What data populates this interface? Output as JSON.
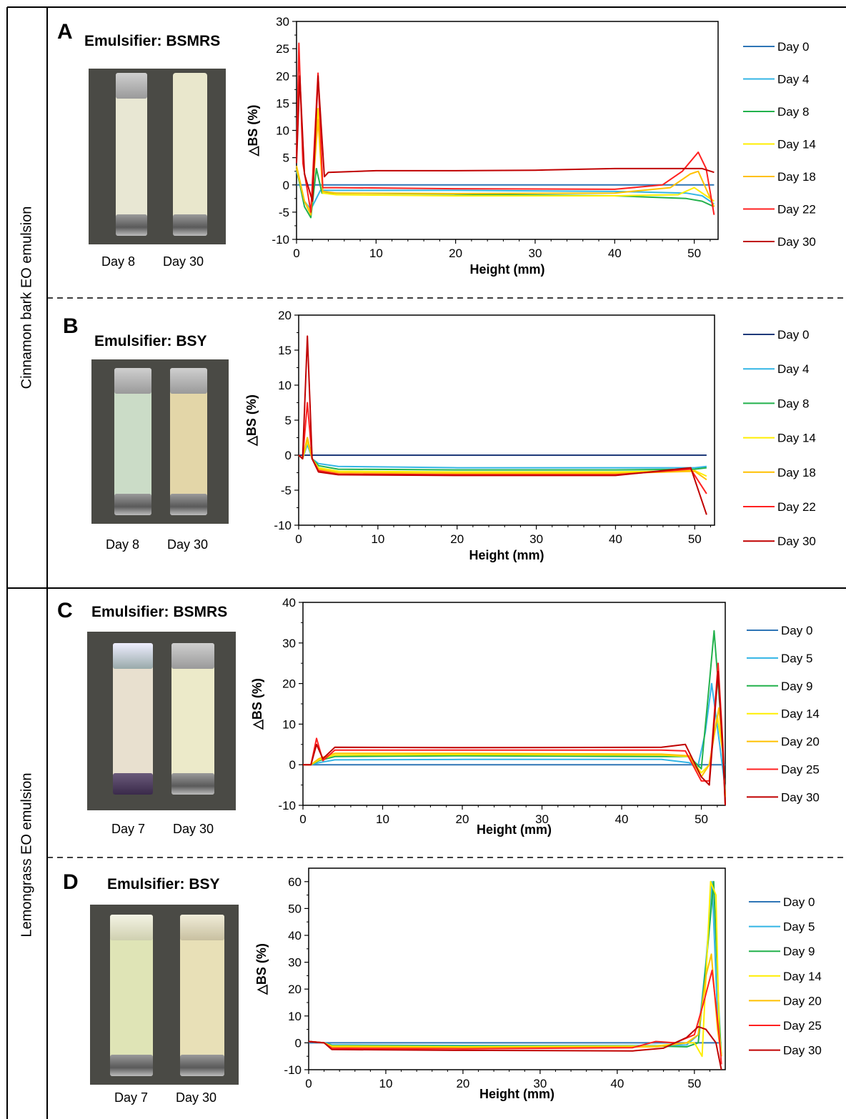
{
  "sections": [
    {
      "label": "Cinnamon bark EO emulsion"
    },
    {
      "label": "Lemongrass EO emulsion"
    }
  ],
  "panels": [
    {
      "letter": "A",
      "emulsifier": "Emulsifier: BSMRS",
      "photo_labels": [
        "Day 8",
        "Day 30"
      ],
      "tube_colors": [
        "#e8e7d3",
        "#e9e7cc"
      ]
    },
    {
      "letter": "B",
      "emulsifier": "Emulsifier: BSY",
      "photo_labels": [
        "Day 8",
        "Day 30"
      ],
      "tube_colors": [
        "#cbdcc7",
        "#e3d6a8"
      ]
    },
    {
      "letter": "C",
      "emulsifier": "Emulsifier: BSMRS",
      "photo_labels": [
        "Day 7",
        "Day 30"
      ],
      "tube_colors": [
        "#e8e0cf",
        "#eceac9"
      ]
    },
    {
      "letter": "D",
      "emulsifier": "Emulsifier: BSY",
      "photo_labels": [
        "Day 7",
        "Day 30"
      ],
      "tube_colors": [
        "#dfe4b6",
        "#e8e0b7"
      ]
    }
  ],
  "chart_data": [
    {
      "type": "line",
      "panel": "A",
      "xlabel": "Height (mm)",
      "ylabel": "△BS (%)",
      "xlim": [
        0,
        53
      ],
      "ylim": [
        -10,
        30
      ],
      "xticks": [
        0,
        10,
        20,
        30,
        40,
        50
      ],
      "yticks": [
        -10,
        -5,
        0,
        5,
        10,
        15,
        20,
        25,
        30
      ],
      "legend": "right",
      "series": [
        {
          "name": "Day 0",
          "color": "#2e75b6",
          "x": [
            0,
            52.5
          ],
          "y": [
            0,
            0
          ]
        },
        {
          "name": "Day 4",
          "color": "#33b5e5",
          "x": [
            0,
            1,
            1.8,
            3,
            5,
            20,
            40,
            49,
            51,
            52.5
          ],
          "y": [
            2.5,
            -3,
            -4.5,
            -1,
            -1,
            -1,
            -1.2,
            -1.5,
            -2,
            -3.5
          ]
        },
        {
          "name": "Day 8",
          "color": "#22b14c",
          "x": [
            0,
            1,
            1.8,
            2.5,
            3.2,
            5,
            20,
            40,
            49,
            51,
            52.5
          ],
          "y": [
            3,
            -4,
            -6,
            3,
            -1.5,
            -1.5,
            -1.7,
            -2,
            -2.5,
            -3,
            -4
          ]
        },
        {
          "name": "Day 14",
          "color": "#ffee00",
          "x": [
            0,
            1,
            1.8,
            2.7,
            3.3,
            5,
            20,
            40,
            48,
            50,
            51.5,
            52.5
          ],
          "y": [
            3,
            -3,
            -5,
            14,
            -1.5,
            -1.8,
            -2,
            -2,
            -1.8,
            -0.5,
            -2,
            -3
          ]
        },
        {
          "name": "Day 18",
          "color": "#ffc000",
          "x": [
            0,
            1,
            1.8,
            2.7,
            3.3,
            5,
            20,
            40,
            47,
            49.5,
            50.5,
            52.5
          ],
          "y": [
            3.5,
            -3,
            -5.5,
            12,
            -1.2,
            -1.5,
            -1.6,
            -1.5,
            -0.5,
            2,
            2.5,
            -4
          ]
        },
        {
          "name": "Day 22",
          "color": "#ff2020",
          "x": [
            0,
            0.3,
            0.8,
            1.8,
            2.7,
            3.3,
            5,
            20,
            40,
            46,
            48.5,
            50.5,
            51.5,
            52.5
          ],
          "y": [
            5,
            26,
            4,
            -5,
            20.5,
            -0.5,
            -0.5,
            -0.7,
            -0.8,
            0,
            2.5,
            6,
            3,
            -5.5
          ]
        },
        {
          "name": "Day 30",
          "color": "#c00000",
          "x": [
            0,
            0.4,
            1,
            2,
            2.7,
            3.5,
            4,
            10,
            20,
            30,
            40,
            48,
            51,
            52.5
          ],
          "y": [
            4,
            20,
            2,
            -3,
            20,
            1.5,
            2.3,
            2.6,
            2.6,
            2.7,
            3.0,
            3.0,
            3.0,
            2.3
          ]
        }
      ]
    },
    {
      "type": "line",
      "panel": "B",
      "xlabel": "Height (mm)",
      "ylabel": "△BS (%)",
      "xlim": [
        0,
        52.5
      ],
      "ylim": [
        -10,
        20
      ],
      "xticks": [
        0,
        10,
        20,
        30,
        40,
        50
      ],
      "yticks": [
        -10,
        -5,
        0,
        5,
        10,
        15,
        20
      ],
      "legend": "right",
      "series": [
        {
          "name": "Day 0",
          "color": "#1f3a7a",
          "x": [
            0,
            51.5
          ],
          "y": [
            0,
            0
          ]
        },
        {
          "name": "Day 4",
          "color": "#33b5e5",
          "x": [
            0,
            0.5,
            1.1,
            1.7,
            2.5,
            5,
            20,
            40,
            50,
            51.5
          ],
          "y": [
            0,
            -0.5,
            1.5,
            -0.5,
            -1.2,
            -1.6,
            -1.8,
            -1.8,
            -1.8,
            -1.6
          ]
        },
        {
          "name": "Day 8",
          "color": "#22b14c",
          "x": [
            0,
            0.5,
            1.1,
            1.7,
            2.5,
            5,
            20,
            40,
            50,
            51.5
          ],
          "y": [
            0,
            -0.5,
            2.5,
            -0.5,
            -1.5,
            -2,
            -2.1,
            -2.1,
            -2.0,
            -1.8
          ]
        },
        {
          "name": "Day 14",
          "color": "#ffee00",
          "x": [
            0,
            0.5,
            1.1,
            1.7,
            2.5,
            5,
            20,
            40,
            50,
            51.5
          ],
          "y": [
            0,
            -0.5,
            2.0,
            -0.5,
            -1.8,
            -2.3,
            -2.4,
            -2.4,
            -2.2,
            -3.0
          ]
        },
        {
          "name": "Day 18",
          "color": "#ffc000",
          "x": [
            0,
            0.5,
            1.1,
            1.7,
            2.5,
            5,
            20,
            40,
            50,
            51.5
          ],
          "y": [
            0,
            -0.5,
            2.5,
            -0.5,
            -2.0,
            -2.5,
            -2.6,
            -2.6,
            -2.3,
            -3.5
          ]
        },
        {
          "name": "Day 22",
          "color": "#ff2020",
          "x": [
            0,
            0.5,
            1.1,
            1.7,
            2.5,
            5,
            20,
            40,
            49.5,
            51.5
          ],
          "y": [
            0,
            -0.5,
            7.5,
            -0.5,
            -2.2,
            -2.7,
            -2.8,
            -2.8,
            -2.0,
            -5.5
          ]
        },
        {
          "name": "Day 30",
          "color": "#c00000",
          "x": [
            0,
            0.5,
            1.1,
            1.7,
            2.5,
            5,
            20,
            40,
            49.5,
            51.5
          ],
          "y": [
            0,
            -0.5,
            17,
            -0.5,
            -2.4,
            -2.8,
            -2.9,
            -2.9,
            -1.8,
            -8.5
          ]
        }
      ]
    },
    {
      "type": "line",
      "panel": "C",
      "xlabel": "Height (mm)",
      "ylabel": "△BS (%)",
      "xlim": [
        0,
        53
      ],
      "ylim": [
        -10,
        40
      ],
      "xticks": [
        0,
        10,
        20,
        30,
        40,
        50
      ],
      "yticks": [
        -10,
        0,
        10,
        20,
        30,
        40
      ],
      "legend": "right",
      "series": [
        {
          "name": "Day 0",
          "color": "#2e75b6",
          "x": [
            0,
            53
          ],
          "y": [
            0,
            0
          ]
        },
        {
          "name": "Day 5",
          "color": "#33b5e5",
          "x": [
            0,
            1,
            2,
            4,
            20,
            45,
            48.5,
            49.5,
            50.5,
            51.3,
            52.3,
            53
          ],
          "y": [
            0,
            0,
            0.5,
            1.2,
            1.3,
            1.3,
            0.5,
            -1,
            8,
            20,
            5,
            -6
          ]
        },
        {
          "name": "Day 9",
          "color": "#22b14c",
          "x": [
            0,
            1,
            2,
            4,
            20,
            45,
            48.5,
            50,
            51,
            51.6,
            52.5,
            53
          ],
          "y": [
            0,
            0,
            1,
            2,
            2.2,
            2.0,
            2.0,
            -1,
            20,
            33,
            10,
            -8
          ]
        },
        {
          "name": "Day 14",
          "color": "#ffee00",
          "x": [
            0,
            1,
            2,
            4,
            20,
            45,
            48.5,
            50,
            51,
            52,
            52.7,
            53
          ],
          "y": [
            0,
            0,
            1.2,
            2.4,
            2.5,
            2.4,
            2.0,
            -2,
            0,
            12,
            3,
            -8
          ]
        },
        {
          "name": "Day 20",
          "color": "#ffc000",
          "x": [
            0,
            1,
            2,
            4,
            20,
            45,
            48.5,
            50,
            51,
            52.2,
            52.7,
            53
          ],
          "y": [
            0,
            0,
            1.5,
            2.8,
            2.8,
            2.6,
            2.2,
            -3,
            0,
            14,
            3,
            -8
          ]
        },
        {
          "name": "Day 25",
          "color": "#ff2020",
          "x": [
            0,
            1,
            1.7,
            2.5,
            4,
            20,
            45,
            48,
            50,
            51,
            52.1,
            52.7,
            53
          ],
          "y": [
            0,
            0,
            6.5,
            1,
            3.6,
            3.6,
            3.6,
            3.4,
            -4,
            -4,
            25,
            5,
            -10
          ]
        },
        {
          "name": "Day 30",
          "color": "#c00000",
          "x": [
            0,
            1,
            1.7,
            2.5,
            4,
            20,
            45,
            48,
            50,
            51,
            52.1,
            52.7,
            53
          ],
          "y": [
            0,
            0,
            5,
            1.5,
            4.3,
            4.2,
            4.3,
            5.0,
            -3,
            -5,
            23,
            3,
            -10
          ]
        }
      ]
    },
    {
      "type": "line",
      "panel": "D",
      "xlabel": "Height (mm)",
      "ylabel": "△BS (%)",
      "xlim": [
        0,
        54
      ],
      "ylim": [
        -10,
        65
      ],
      "xticks": [
        0,
        10,
        20,
        30,
        40,
        50
      ],
      "yticks": [
        -10,
        0,
        10,
        20,
        30,
        40,
        50,
        60
      ],
      "legend": "right",
      "series": [
        {
          "name": "Day 0",
          "color": "#2e75b6",
          "x": [
            0,
            53.5
          ],
          "y": [
            0,
            0
          ]
        },
        {
          "name": "Day 5",
          "color": "#33b5e5",
          "x": [
            0,
            2,
            3,
            20,
            45,
            49,
            50.5,
            51.5,
            52.3,
            53,
            53.5
          ],
          "y": [
            0.5,
            0,
            -0.8,
            -1,
            -1,
            -0.8,
            3,
            30,
            60,
            10,
            -5
          ]
        },
        {
          "name": "Day 9",
          "color": "#22b14c",
          "x": [
            0,
            2,
            3,
            20,
            45,
            49,
            50.5,
            51.7,
            52.5,
            53.2,
            53.5
          ],
          "y": [
            0.5,
            0,
            -1,
            -1.2,
            -1.2,
            -1.5,
            0,
            35,
            60,
            10,
            -5
          ]
        },
        {
          "name": "Day 14",
          "color": "#ffee00",
          "x": [
            0,
            2,
            3,
            20,
            45,
            49,
            50,
            51,
            52.1,
            52.8,
            53.2,
            53.5
          ],
          "y": [
            0.5,
            0,
            -1.2,
            -1.5,
            -1.2,
            0,
            0,
            -5,
            60,
            55,
            5,
            -5
          ]
        },
        {
          "name": "Day 20",
          "color": "#ffc000",
          "x": [
            0,
            2,
            3,
            20,
            45,
            49,
            50.5,
            51.5,
            52.2,
            53,
            53.5
          ],
          "y": [
            0.5,
            0,
            -1.5,
            -1.8,
            -1.5,
            0,
            3,
            25,
            33,
            5,
            -5
          ]
        },
        {
          "name": "Day 25",
          "color": "#ff2020",
          "x": [
            0,
            2,
            3,
            20,
            42,
            45,
            47.5,
            50,
            51.2,
            52.3,
            53.2,
            53.5
          ],
          "y": [
            0.5,
            0,
            -2,
            -2.2,
            -1.8,
            0.5,
            0,
            3,
            15,
            27,
            3,
            -8
          ]
        },
        {
          "name": "Day 30",
          "color": "#c00000",
          "x": [
            0,
            2,
            3,
            20,
            42,
            46,
            49,
            50.5,
            51.5,
            52.8,
            53.5
          ],
          "y": [
            0.5,
            0,
            -2.5,
            -2.8,
            -3,
            -2,
            2,
            6,
            5,
            0,
            -10
          ]
        }
      ]
    }
  ]
}
